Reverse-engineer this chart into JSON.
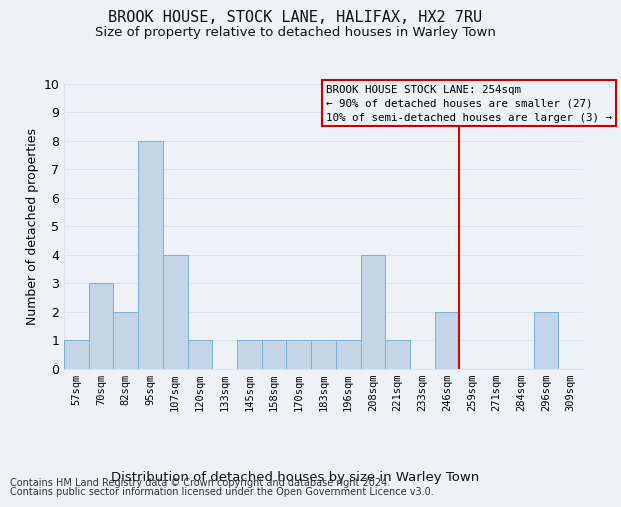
{
  "title": "BROOK HOUSE, STOCK LANE, HALIFAX, HX2 7RU",
  "subtitle": "Size of property relative to detached houses in Warley Town",
  "xlabel": "Distribution of detached houses by size in Warley Town",
  "ylabel": "Number of detached properties",
  "categories": [
    "57sqm",
    "70sqm",
    "82sqm",
    "95sqm",
    "107sqm",
    "120sqm",
    "133sqm",
    "145sqm",
    "158sqm",
    "170sqm",
    "183sqm",
    "196sqm",
    "208sqm",
    "221sqm",
    "233sqm",
    "246sqm",
    "259sqm",
    "271sqm",
    "284sqm",
    "296sqm",
    "309sqm"
  ],
  "values": [
    1,
    3,
    2,
    8,
    4,
    1,
    0,
    1,
    1,
    1,
    1,
    1,
    4,
    1,
    0,
    2,
    0,
    0,
    0,
    2,
    0
  ],
  "bar_color": "#c5d5e8",
  "bar_edge_color": "#7bafd4",
  "grid_color": "#d8e2ef",
  "background_color": "#edf2f9",
  "red_line_color": "#dd0000",
  "red_line_x": 15.5,
  "annotation_text": "BROOK HOUSE STOCK LANE: 254sqm\n← 90% of detached houses are smaller (27)\n10% of semi-detached houses are larger (3) →",
  "annotation_edgecolor": "#cc0000",
  "ylim": [
    0,
    10
  ],
  "yticks": [
    0,
    1,
    2,
    3,
    4,
    5,
    6,
    7,
    8,
    9,
    10
  ],
  "footnote_line1": "Contains HM Land Registry data © Crown copyright and database right 2024.",
  "footnote_line2": "Contains public sector information licensed under the Open Government Licence v3.0."
}
